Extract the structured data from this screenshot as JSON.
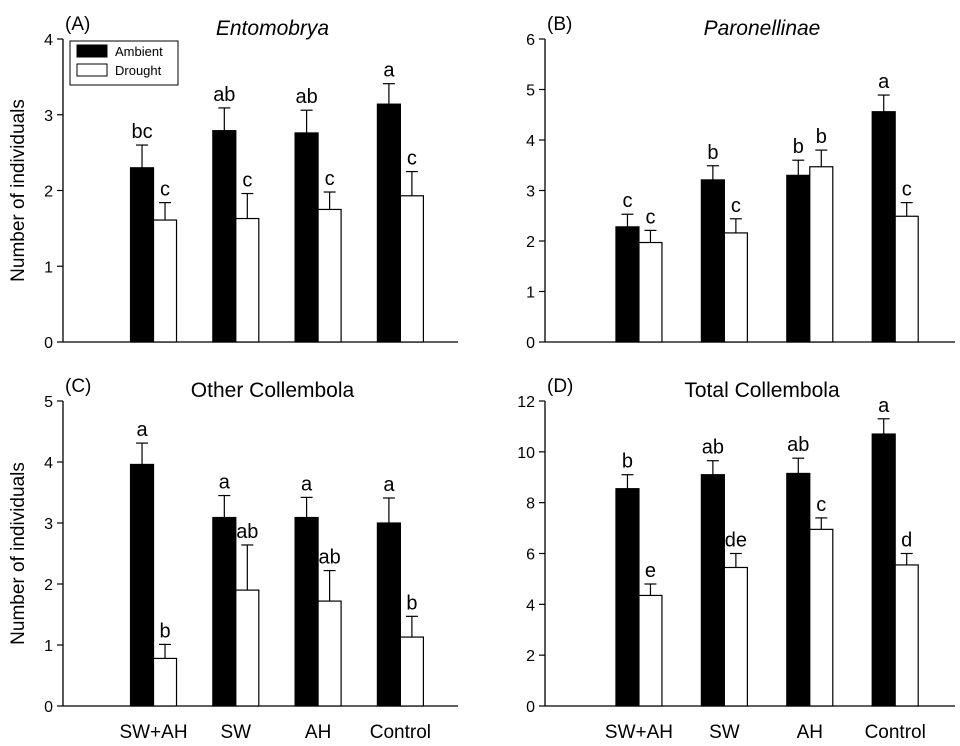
{
  "figure": {
    "ylabel": "Number of individuals",
    "legend": [
      {
        "label": "Ambient",
        "color": "#000000"
      },
      {
        "label": "Drought",
        "color": "#ffffff"
      }
    ]
  },
  "chart_data": [
    {
      "type": "bar",
      "panel": "(A)",
      "title": "Entomobrya",
      "title_style": "italic",
      "ylabel": "Number of individuals",
      "categories": [
        "SW+AH",
        "SW",
        "AH",
        "Control"
      ],
      "ylim": [
        0,
        4
      ],
      "yticks": [
        0,
        1,
        2,
        3,
        4
      ],
      "legend_position": "top-left",
      "series": [
        {
          "name": "Ambient",
          "color": "#000000",
          "values": [
            2.3,
            2.79,
            2.76,
            3.14
          ],
          "errors": [
            0.3,
            0.3,
            0.3,
            0.27
          ],
          "labels": [
            "bc",
            "ab",
            "ab",
            "a"
          ]
        },
        {
          "name": "Drought",
          "color": "#ffffff",
          "values": [
            1.61,
            1.63,
            1.75,
            1.93
          ],
          "errors": [
            0.23,
            0.33,
            0.23,
            0.32
          ],
          "labels": [
            "c",
            "c",
            "c",
            "c"
          ]
        }
      ]
    },
    {
      "type": "bar",
      "panel": "(B)",
      "title": "Paronellinae",
      "title_style": "italic",
      "categories": [
        "SW+AH",
        "SW",
        "AH",
        "Control"
      ],
      "ylim": [
        0,
        6
      ],
      "yticks": [
        0,
        1,
        2,
        3,
        4,
        5,
        6
      ],
      "series": [
        {
          "name": "Ambient",
          "color": "#000000",
          "values": [
            2.28,
            3.21,
            3.3,
            4.56
          ],
          "errors": [
            0.25,
            0.28,
            0.3,
            0.33
          ],
          "labels": [
            "c",
            "b",
            "b",
            "a"
          ]
        },
        {
          "name": "Drought",
          "color": "#ffffff",
          "values": [
            1.97,
            2.16,
            3.47,
            2.49
          ],
          "errors": [
            0.24,
            0.28,
            0.33,
            0.27
          ],
          "labels": [
            "c",
            "c",
            "b",
            "c"
          ]
        }
      ]
    },
    {
      "type": "bar",
      "panel": "(C)",
      "title": "Other Collembola",
      "title_style": "normal",
      "ylabel": "Number of individuals",
      "categories": [
        "SW+AH",
        "SW",
        "AH",
        "Control"
      ],
      "ylim": [
        0,
        5
      ],
      "yticks": [
        0,
        1,
        2,
        3,
        4,
        5
      ],
      "series": [
        {
          "name": "Ambient",
          "color": "#000000",
          "values": [
            3.96,
            3.09,
            3.09,
            3.0
          ],
          "errors": [
            0.35,
            0.36,
            0.33,
            0.41
          ],
          "labels": [
            "a",
            "a",
            "a",
            "a"
          ]
        },
        {
          "name": "Drought",
          "color": "#ffffff",
          "values": [
            0.78,
            1.9,
            1.72,
            1.13
          ],
          "errors": [
            0.23,
            0.74,
            0.5,
            0.34
          ],
          "labels": [
            "b",
            "ab",
            "ab",
            "b"
          ]
        }
      ]
    },
    {
      "type": "bar",
      "panel": "(D)",
      "title": "Total Collembola",
      "title_style": "normal",
      "categories": [
        "SW+AH",
        "SW",
        "AH",
        "Control"
      ],
      "ylim": [
        0,
        12
      ],
      "yticks": [
        0,
        2,
        4,
        6,
        8,
        10,
        12
      ],
      "series": [
        {
          "name": "Ambient",
          "color": "#000000",
          "values": [
            8.55,
            9.1,
            9.15,
            10.7
          ],
          "errors": [
            0.55,
            0.55,
            0.6,
            0.6
          ],
          "labels": [
            "b",
            "ab",
            "ab",
            "a"
          ]
        },
        {
          "name": "Drought",
          "color": "#ffffff",
          "values": [
            4.35,
            5.45,
            6.95,
            5.55
          ],
          "errors": [
            0.45,
            0.55,
            0.45,
            0.45
          ],
          "labels": [
            "e",
            "de",
            "c",
            "d"
          ]
        }
      ]
    }
  ]
}
